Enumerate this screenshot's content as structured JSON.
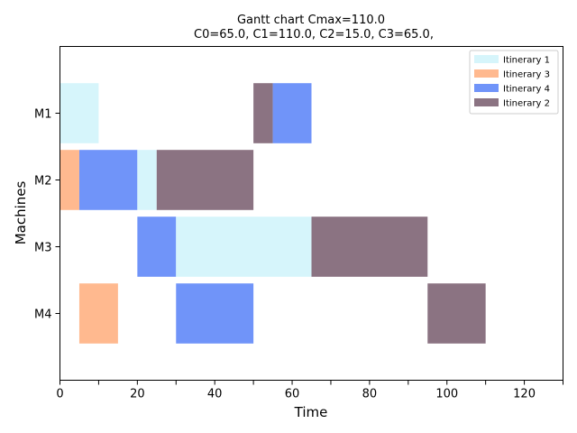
{
  "chart_data": {
    "type": "gantt",
    "title": "Gantt chart  Cmax=110.0",
    "subtitle": "C0=65.0, C1=110.0, C2=15.0, C3=65.0,",
    "xlabel": "Time",
    "ylabel": "Machines",
    "xlim": [
      0,
      130
    ],
    "x_ticks": [
      0,
      20,
      40,
      60,
      80,
      100,
      120
    ],
    "x_minor_ticks": [
      10,
      30,
      50,
      70,
      90,
      110,
      130
    ],
    "machines": [
      "M1",
      "M2",
      "M3",
      "M4"
    ],
    "legend_position": "top-right",
    "grid": false,
    "series": [
      {
        "name": "Itinerary 1",
        "color": "#d6f5fb"
      },
      {
        "name": "Itinerary 3",
        "color": "#ffb98f"
      },
      {
        "name": "Itinerary 4",
        "color": "#7094f9"
      },
      {
        "name": "Itinerary 2",
        "color": "#8b7382"
      }
    ],
    "tasks": [
      {
        "machine": "M1",
        "series": "Itinerary 1",
        "start": 0,
        "end": 10
      },
      {
        "machine": "M1",
        "series": "Itinerary 2",
        "start": 50,
        "end": 55
      },
      {
        "machine": "M1",
        "series": "Itinerary 4",
        "start": 55,
        "end": 65
      },
      {
        "machine": "M2",
        "series": "Itinerary 3",
        "start": 0,
        "end": 5
      },
      {
        "machine": "M2",
        "series": "Itinerary 4",
        "start": 5,
        "end": 20
      },
      {
        "machine": "M2",
        "series": "Itinerary 1",
        "start": 20,
        "end": 25
      },
      {
        "machine": "M2",
        "series": "Itinerary 2",
        "start": 25,
        "end": 50
      },
      {
        "machine": "M3",
        "series": "Itinerary 4",
        "start": 20,
        "end": 30
      },
      {
        "machine": "M3",
        "series": "Itinerary 1",
        "start": 30,
        "end": 65
      },
      {
        "machine": "M3",
        "series": "Itinerary 2",
        "start": 65,
        "end": 95
      },
      {
        "machine": "M4",
        "series": "Itinerary 3",
        "start": 5,
        "end": 15
      },
      {
        "machine": "M4",
        "series": "Itinerary 4",
        "start": 30,
        "end": 50
      },
      {
        "machine": "M4",
        "series": "Itinerary 2",
        "start": 95,
        "end": 110
      }
    ]
  }
}
